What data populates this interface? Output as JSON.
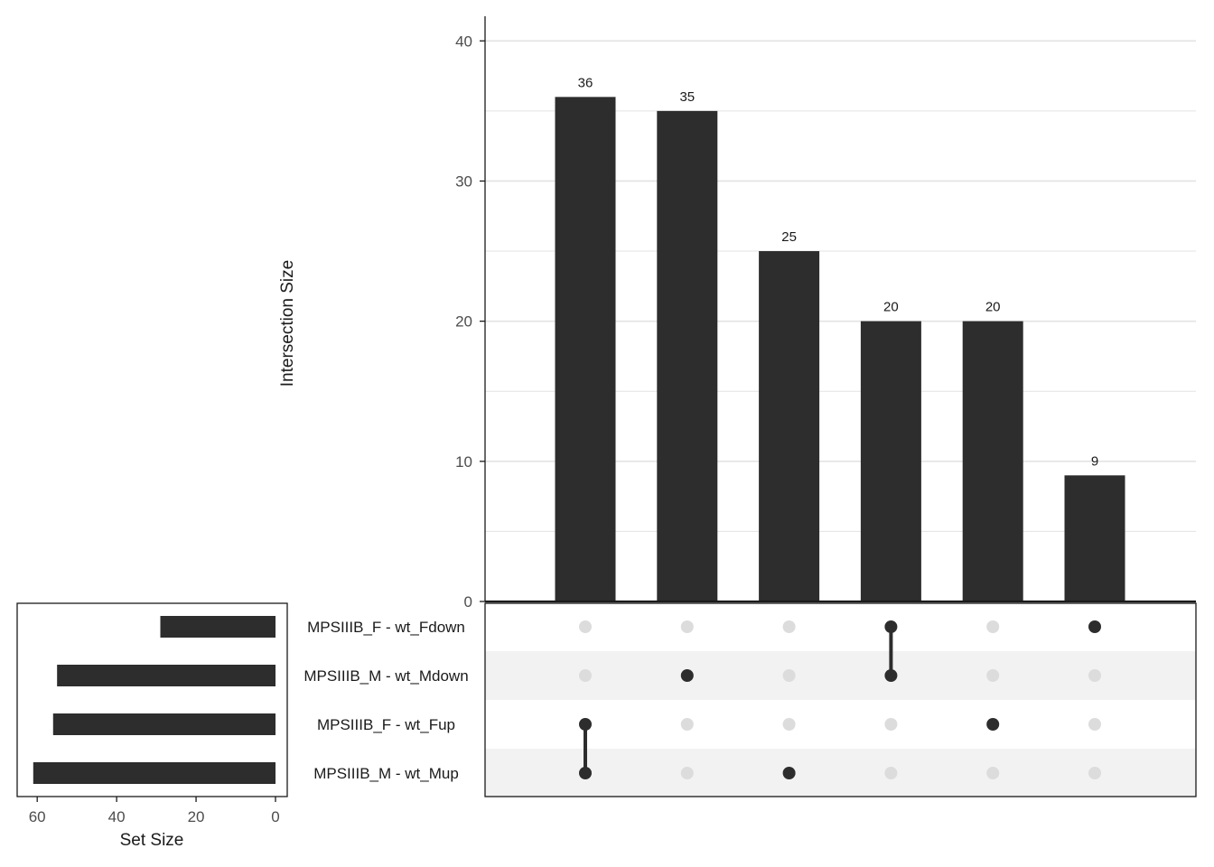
{
  "chart_data": {
    "type": "bar",
    "subtype": "upset",
    "colors": {
      "bar": "#2d2d2d",
      "dot_active": "#2d2d2d",
      "dot_inactive": "#dcdcdc",
      "grid": "#e3e3e3",
      "stripe": "#f2f2f2",
      "axis": "#1a1a1a",
      "tick_text": "#4d4d4d",
      "title_text": "#1a1a1a"
    },
    "intersection_bars": {
      "ylabel": "Intersection Size",
      "ylim": [
        0,
        41.5
      ],
      "yticks": [
        0,
        10,
        20,
        30,
        40
      ],
      "grid": true,
      "values": [
        36,
        35,
        25,
        20,
        20,
        9
      ],
      "labels": [
        "36",
        "35",
        "25",
        "20",
        "20",
        "9"
      ]
    },
    "sets": [
      {
        "name": "MPSIIIB_F - wt_Fdown",
        "size": 29
      },
      {
        "name": "MPSIIIB_M - wt_Mdown",
        "size": 55
      },
      {
        "name": "MPSIIIB_F - wt_Fup",
        "size": 56
      },
      {
        "name": "MPSIIIB_M - wt_Mup",
        "size": 61
      }
    ],
    "intersections": [
      {
        "members": [
          "MPSIIIB_F - wt_Fup",
          "MPSIIIB_M - wt_Mup"
        ]
      },
      {
        "members": [
          "MPSIIIB_M - wt_Mdown"
        ]
      },
      {
        "members": [
          "MPSIIIB_M - wt_Mup"
        ]
      },
      {
        "members": [
          "MPSIIIB_F - wt_Fdown",
          "MPSIIIB_M - wt_Mdown"
        ]
      },
      {
        "members": [
          "MPSIIIB_F - wt_Fup"
        ]
      },
      {
        "members": [
          "MPSIIIB_F - wt_Fdown"
        ]
      }
    ],
    "set_size_axis": {
      "xlabel": "Set Size",
      "xlim": [
        0,
        63
      ],
      "xticks": [
        60,
        40,
        20,
        0
      ],
      "reversed": true
    }
  }
}
